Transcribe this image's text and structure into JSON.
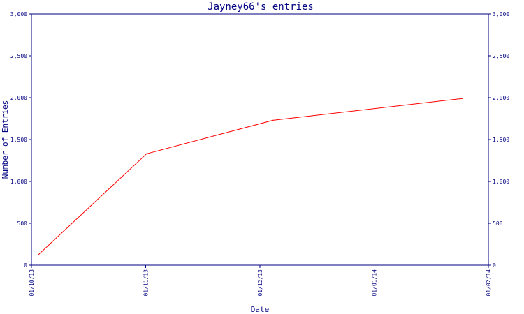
{
  "chart_data": {
    "type": "line",
    "title": "Jayney66's entries",
    "xlabel": "Date",
    "ylabel": "Number of Entries",
    "x_ticks": [
      "01/10/13",
      "01/11/13",
      "01/12/13",
      "01/01/14",
      "01/02/14"
    ],
    "x_range": [
      "2013-10-01",
      "2014-02-01"
    ],
    "y_ticks": [
      "0",
      "500",
      "1,000",
      "1,500",
      "2,000",
      "2,500",
      "3,000"
    ],
    "ylim": [
      0,
      3000
    ],
    "y_axis_mirrored_right": true,
    "grid": false,
    "series": [
      {
        "color": "#ff0000",
        "points": [
          {
            "x": "2013-10-03",
            "y": 130
          },
          {
            "x": "2013-11-01",
            "y": 1330
          },
          {
            "x": "2013-12-05",
            "y": 1730
          },
          {
            "x": "2014-01-25",
            "y": 1990
          }
        ]
      }
    ],
    "colors": {
      "axis": "#000080",
      "line": "#ff0000",
      "background": "#ffffff"
    }
  }
}
